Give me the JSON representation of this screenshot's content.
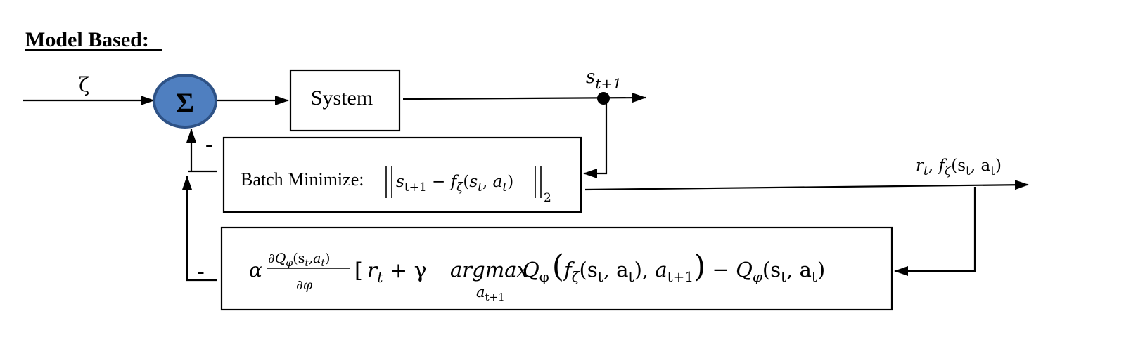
{
  "heading": "Model Based:",
  "input_label": "ζ",
  "sum_symbol": "Σ",
  "system_label": "System",
  "state_next_label": {
    "base": "s",
    "sub": "t+1"
  },
  "feedback_sign_upper": "-",
  "feedback_sign_lower": "-",
  "batch_prefix": "Batch Minimize:",
  "batch_norm": {
    "s": "s",
    "s_sub": "t+1",
    "minus": " − ",
    "f": "f",
    "f_sub": "ζ",
    "open": "(",
    "s2": "s",
    "s2_sub": "t",
    "comma": ", ",
    "a": "a",
    "a_sub": "t",
    "close": ")",
    "norm_sub": "2"
  },
  "reward_label": {
    "r": "r",
    "r_sub": "t",
    "sep": ", ",
    "f": "f",
    "f_sub": "ζ",
    "open": "(",
    "s": "s",
    "s_sub": "t",
    "comma": ", ",
    "a": "a",
    "a_sub": "t",
    "close": ")"
  },
  "q_update": {
    "alpha": "α",
    "numer_Q": "∂Q",
    "numer_Q_sub": "φ",
    "numer_args": "(s",
    "numer_args_sub": "t",
    "numer_args2": ",a",
    "numer_args2_sub": "t",
    "numer_close": ")",
    "denom": "∂φ",
    "bracket": "[",
    "r": "r",
    "r_sub": "t",
    "plus_gamma": " + γ  ",
    "argmax": "argmax",
    "argmax_sub": "a",
    "argmax_sub_sub": "t+1",
    "Q": "Q",
    "Q_sub": "φ",
    "big_open": "(",
    "f": "f",
    "f_sub": "ζ",
    "f_open": "(s",
    "f_s_sub": "t",
    "f_comma": ", a",
    "f_a_sub": "t",
    "f_close": "),",
    "a_next": " a",
    "a_next_sub": "t+1",
    "big_close": ")",
    "minus": " − ",
    "Q2": "Q",
    "Q2_sub": "φ",
    "Q2_open": "(s",
    "Q2_s_sub": "t",
    "Q2_comma": ", a",
    "Q2_a_sub": "t",
    "Q2_close": ")"
  },
  "colors": {
    "sum_fill": "#4f7fc0",
    "sum_stroke": "#2e5286",
    "line": "#000000"
  }
}
